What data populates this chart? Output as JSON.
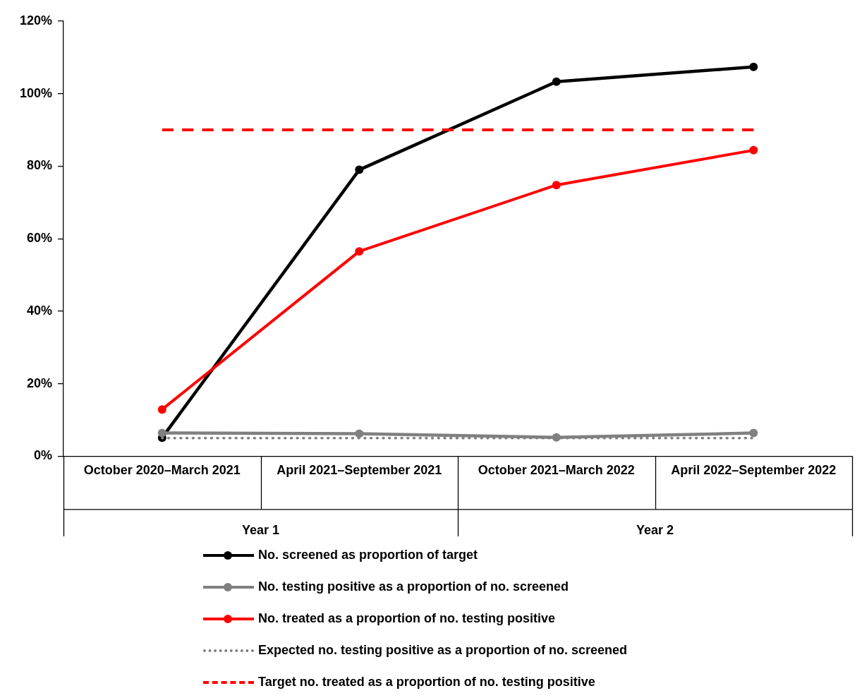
{
  "chart_data": {
    "type": "line",
    "categories": [
      "October 2020–March 2021",
      "April 2021–September 2021",
      "October 2021–March 2022",
      "April 2022–September 2022"
    ],
    "series": [
      {
        "name": "No. screened as proportion of target",
        "color": "#000000",
        "values": [
          5.1,
          79,
          103.3,
          107.4
        ]
      },
      {
        "name": "No. testing positive as a proportion of no. screened",
        "color": "#808080",
        "values": [
          6.4,
          6.2,
          5.2,
          6.4
        ]
      },
      {
        "name": "No. treated as a proportion of no. testing positive",
        "color": "#ff0000",
        "values": [
          12.9,
          56.5,
          74.8,
          84.4
        ]
      },
      {
        "name": "Expected no. testing positive as a proportion of no. screened",
        "color": "#808080",
        "values": [
          5,
          5,
          5,
          5
        ],
        "marker": "none",
        "line_style": "dotted"
      },
      {
        "name": "Target no. treated as a proportion of no. testing positive",
        "color": "#ff0000",
        "values": [
          90,
          90,
          90,
          90
        ],
        "marker": "none",
        "line_style": "dashed"
      }
    ],
    "ylim": [
      0,
      120
    ],
    "yticks": [
      {
        "value": 0,
        "label": "0%"
      },
      {
        "value": 20,
        "label": "20%"
      },
      {
        "value": 40,
        "label": "40%"
      },
      {
        "value": 60,
        "label": "60%"
      },
      {
        "value": 80,
        "label": "80%"
      },
      {
        "value": 100,
        "label": "100%"
      },
      {
        "value": 120,
        "label": "120%"
      }
    ],
    "annotations": [
      "Year 1",
      "Year 2"
    ],
    "grid": false,
    "legend": "bottom",
    "marker": "circle",
    "line_style": "solid"
  }
}
